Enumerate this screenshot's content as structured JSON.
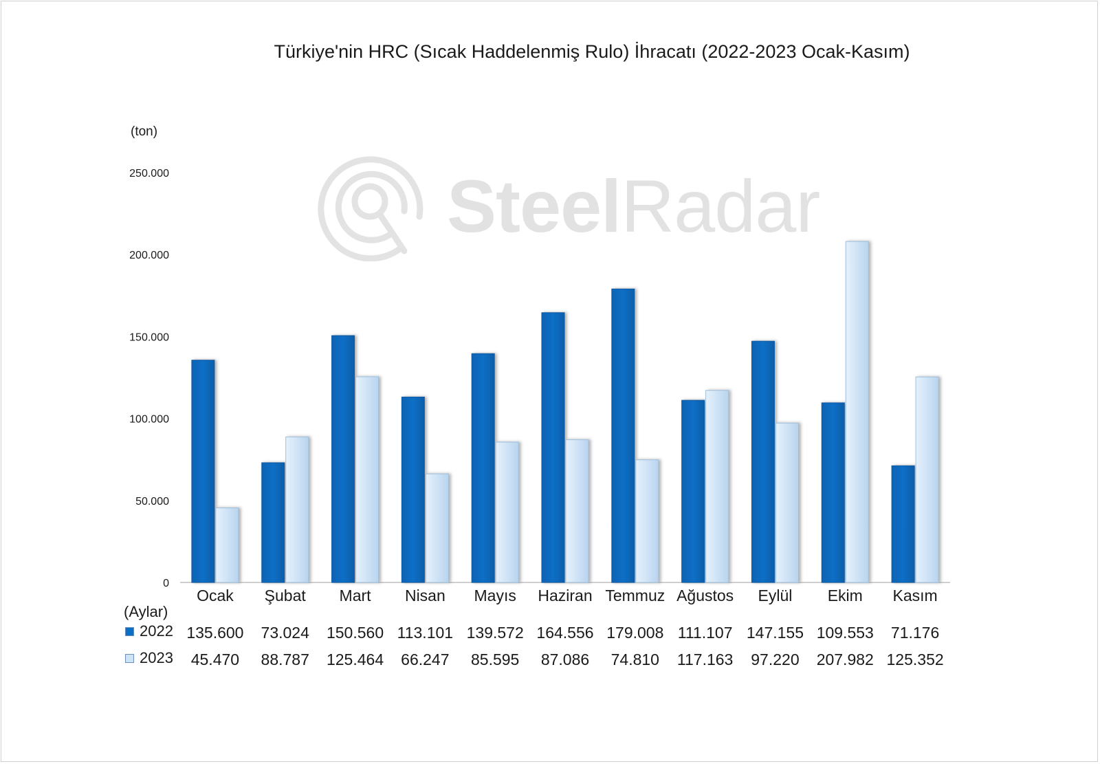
{
  "chart_data": {
    "type": "bar",
    "title": "Türkiye'nin HRC (Sıcak Haddelenmiş Rulo) İhracatı (2022-2023 Ocak-Kasım)",
    "ylabel": "(ton)",
    "xlabel": "(Aylar)",
    "ylim": [
      0,
      250000
    ],
    "yticks": [
      0,
      50000,
      100000,
      150000,
      200000,
      250000
    ],
    "ytick_labels": [
      "0",
      "50.000",
      "100.000",
      "150.000",
      "200.000",
      "250.000"
    ],
    "categories": [
      "Ocak",
      "Şubat",
      "Mart",
      "Nisan",
      "Mayıs",
      "Haziran",
      "Temmuz",
      "Ağustos",
      "Eylül",
      "Ekim",
      "Kasım"
    ],
    "series": [
      {
        "name": "2022",
        "color": "#0b6fc6",
        "values": [
          135600,
          73024,
          150560,
          113101,
          139572,
          164556,
          179008,
          111107,
          147155,
          109553,
          71176
        ],
        "labels": [
          "135.600",
          "73.024",
          "150.560",
          "113.101",
          "139.572",
          "164.556",
          "179.008",
          "111.107",
          "147.155",
          "109.553",
          "71.176"
        ]
      },
      {
        "name": "2023",
        "color": "#cfe3f6",
        "values": [
          45470,
          88787,
          125464,
          66247,
          85595,
          87086,
          74810,
          117163,
          97220,
          207982,
          125352
        ],
        "labels": [
          "45.470",
          "88.787",
          "125.464",
          "66.247",
          "85.595",
          "87.086",
          "74.810",
          "117.163",
          "97.220",
          "207.982",
          "125.352"
        ]
      }
    ],
    "grid": false,
    "legend": "data-table-below",
    "watermark": {
      "brand_bold": "Steel",
      "brand_light": "Radar"
    }
  }
}
